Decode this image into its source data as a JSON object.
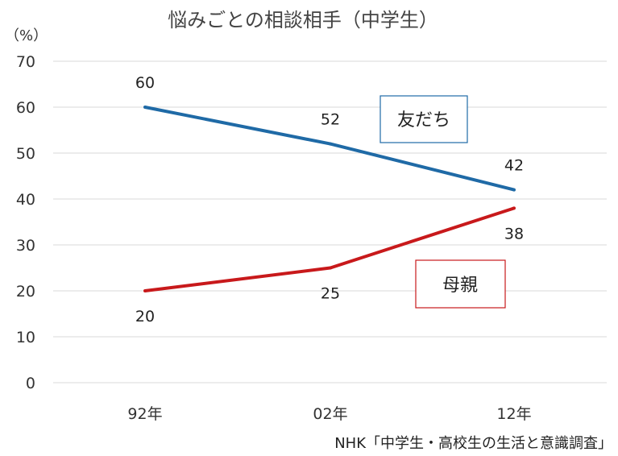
{
  "chart_data": {
    "type": "line",
    "title": "悩みごとの相談相手（中学生）",
    "ylabel": "（%）",
    "xlabel": "",
    "categories": [
      "92年",
      "02年",
      "12年"
    ],
    "ylim": [
      0,
      70
    ],
    "yticks": [
      "0",
      "10",
      "20",
      "30",
      "40",
      "50",
      "60",
      "70"
    ],
    "grid": true,
    "series": [
      {
        "name": "友だち",
        "values": [
          60,
          52,
          42
        ],
        "color": "#1f6aa6"
      },
      {
        "name": "母親",
        "values": [
          20,
          25,
          38
        ],
        "color": "#c8191b"
      }
    ],
    "source": "NHK「中学生・高校生の生活と意識調査」"
  }
}
